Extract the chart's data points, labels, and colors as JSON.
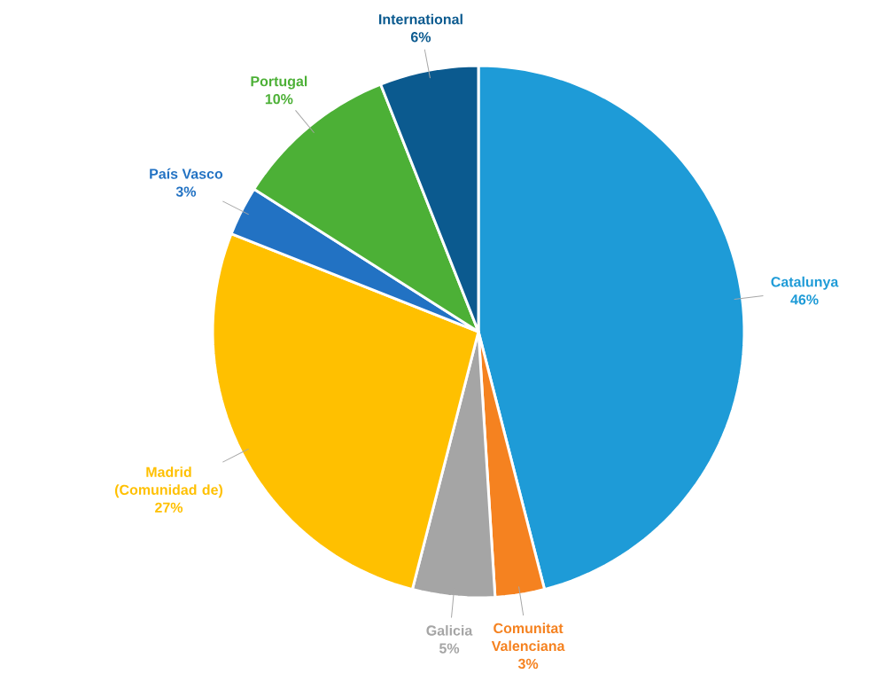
{
  "chart_data": {
    "type": "pie",
    "categories": [
      "Catalunya",
      "Comunitat Valenciana",
      "Galicia",
      "Madrid (Comunidad de)",
      "País Vasco",
      "Portugal",
      "International"
    ],
    "values": [
      46,
      3,
      5,
      27,
      3,
      10,
      6
    ],
    "value_labels": [
      "46%",
      "3%",
      "5%",
      "27%",
      "3%",
      "10%",
      "6%"
    ],
    "colors": [
      "#1e9bd7",
      "#f58220",
      "#a5a5a5",
      "#ffc000",
      "#2272c3",
      "#4cb036",
      "#0b5a8f"
    ]
  }
}
